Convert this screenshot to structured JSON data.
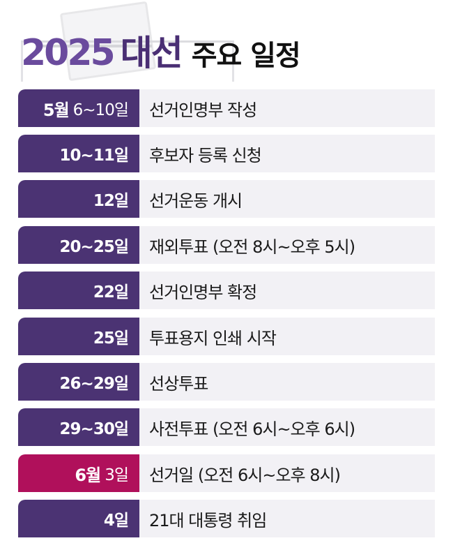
{
  "title": {
    "year": "2025",
    "accent": "대선",
    "rest": "주요 일정"
  },
  "colors": {
    "purple": "#4b3373",
    "magenta": "#b0105b",
    "row_bg": "#f2f1f5"
  },
  "schedule": [
    {
      "month": "5월",
      "day": "6~10일",
      "event": "선거인명부 작성",
      "highlight": false
    },
    {
      "month": "",
      "day": "10~11일",
      "event": "후보자 등록 신청",
      "highlight": false
    },
    {
      "month": "",
      "day": "12일",
      "event": "선거운동 개시",
      "highlight": false
    },
    {
      "month": "",
      "day": "20~25일",
      "event": "재외투표 (오전 8시~오후 5시)",
      "highlight": false
    },
    {
      "month": "",
      "day": "22일",
      "event": "선거인명부 확정",
      "highlight": false
    },
    {
      "month": "",
      "day": "25일",
      "event": "투표용지 인쇄 시작",
      "highlight": false
    },
    {
      "month": "",
      "day": "26~29일",
      "event": "선상투표",
      "highlight": false
    },
    {
      "month": "",
      "day": "29~30일",
      "event": "사전투표 (오전 6시~오후 6시)",
      "highlight": false
    },
    {
      "month": "6월",
      "day": "3일",
      "event": "선거일 (오전 6시~오후 8시)",
      "highlight": true
    },
    {
      "month": "",
      "day": "4일",
      "event": "21대 대통령 취임",
      "highlight": false
    }
  ]
}
